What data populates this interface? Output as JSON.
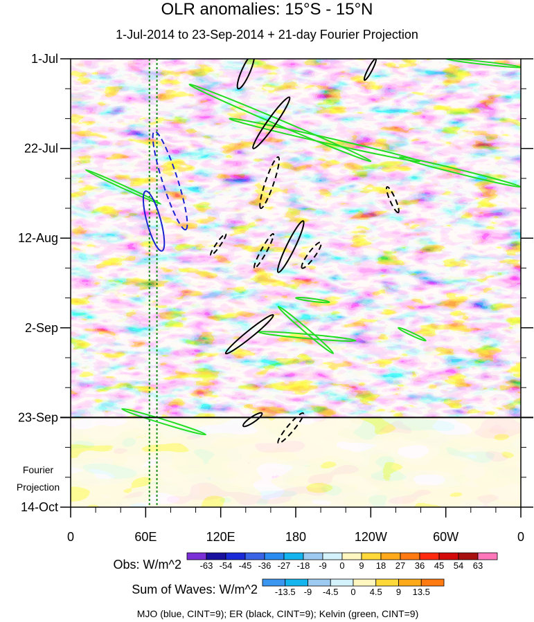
{
  "chart_data": {
    "type": "heatmap",
    "title": "OLR anomalies: 15°S - 15°N",
    "subtitle": "1-Jul-2014 to 23-Sep-2014 + 21-day Fourier Projection",
    "x_ticks": [
      {
        "label": "0",
        "lon": 0
      },
      {
        "label": "60E",
        "lon": 60
      },
      {
        "label": "120E",
        "lon": 120
      },
      {
        "label": "180",
        "lon": 180
      },
      {
        "label": "120W",
        "lon": 240
      },
      {
        "label": "60W",
        "lon": 300
      },
      {
        "label": "0",
        "lon": 360
      }
    ],
    "y_ticks": [
      {
        "label": "1-Jul",
        "day": 0
      },
      {
        "label": "22-Jul",
        "day": 21
      },
      {
        "label": "12-Aug",
        "day": 42
      },
      {
        "label": "2-Sep",
        "day": 63
      },
      {
        "label": "23-Sep",
        "day": 84
      },
      {
        "label": "14-Oct",
        "day": 105
      }
    ],
    "xlim": [
      0,
      360
    ],
    "ylim_days": [
      0,
      105
    ],
    "observation_end_day": 84,
    "projection_label": [
      "Fourier",
      "Projection"
    ],
    "reference_lons": [
      63,
      69
    ],
    "obs_legend": {
      "label": "Obs: W/m^2",
      "levels": [
        "-63",
        "-54",
        "-45",
        "-36",
        "-27",
        "-18",
        "-9",
        "0",
        "9",
        "18",
        "27",
        "36",
        "45",
        "54",
        "63"
      ],
      "colors": [
        "#7b2fd6",
        "#1a10a0",
        "#1a2ad8",
        "#3a64e6",
        "#2a8cf0",
        "#14b4ee",
        "#9ccaf0",
        "#d4f2fb",
        "#fff6c0",
        "#ffd83a",
        "#ffaa1a",
        "#ff7a10",
        "#ff2a10",
        "#d40a0a",
        "#a81010",
        "#ff77bb"
      ]
    },
    "waves_legend": {
      "label": "Sum of Waves: W/m^2",
      "levels": [
        "-13.5",
        "-9",
        "-4.5",
        "0",
        "4.5",
        "9",
        "13.5"
      ],
      "colors": [
        "#3a96f0",
        "#14b4ee",
        "#9ccaf0",
        "#d4f2fb",
        "#fff6c0",
        "#ffd83a",
        "#ffaa1a",
        "#ff7a10"
      ]
    },
    "contour_note": "MJO (blue, CINT=9); ER (black, CINT=9); Kelvin (green, CINT=9)",
    "wave_colors": {
      "mjo": "#1a22d0",
      "er": "#000000",
      "kelvin": "#22dd22"
    },
    "mjo_contours": [
      {
        "lon": 67,
        "day": 17,
        "lon2": 92,
        "day2": 40,
        "width": 11,
        "dashed": true
      },
      {
        "lon": 60,
        "day": 31,
        "lon2": 73,
        "day2": 45,
        "width": 10,
        "dashed": false
      }
    ],
    "er_contours": [
      {
        "lon": 146,
        "day": -1,
        "lon2": 134,
        "day2": 7,
        "width": 6,
        "dashed": false
      },
      {
        "lon": 146,
        "day": 21,
        "lon2": 175,
        "day2": 9,
        "width": 6,
        "dashed": false
      },
      {
        "lon": 166,
        "day": 23,
        "lon2": 152,
        "day2": 35,
        "width": 6,
        "dashed": true
      },
      {
        "lon": 186,
        "day": 38,
        "lon2": 166,
        "day2": 50,
        "width": 6,
        "dashed": false
      },
      {
        "lon": 200,
        "day": 43,
        "lon2": 185,
        "day2": 49,
        "width": 5,
        "dashed": true
      },
      {
        "lon": 162,
        "day": 41,
        "lon2": 147,
        "day2": 49,
        "width": 4,
        "dashed": true
      },
      {
        "lon": 124,
        "day": 41,
        "lon2": 112,
        "day2": 46,
        "width": 3,
        "dashed": true
      },
      {
        "lon": 235,
        "day": 5,
        "lon2": 244,
        "day2": 0,
        "width": 3,
        "dashed": false
      },
      {
        "lon": 253,
        "day": 30,
        "lon2": 262,
        "day2": 36,
        "width": 4,
        "dashed": true
      },
      {
        "lon": 162,
        "day": 60,
        "lon2": 124,
        "day2": 69,
        "width": 5,
        "dashed": false
      },
      {
        "lon": 153,
        "day": 83,
        "lon2": 138,
        "day2": 86,
        "width": 4,
        "dashed": false
      },
      {
        "lon": 186,
        "day": 83,
        "lon2": 166,
        "day2": 90,
        "width": 5,
        "dashed": true
      }
    ],
    "kelvin_contours": [
      {
        "lon": 95,
        "day": 6,
        "lon2": 240,
        "day2": 24,
        "width": 4
      },
      {
        "lon": 127,
        "day": 14,
        "lon2": 279,
        "day2": 24,
        "width": 4
      },
      {
        "lon": 263,
        "day": 23,
        "lon2": 360,
        "day2": 30,
        "width": 3
      },
      {
        "lon": 300,
        "day": 0,
        "lon2": 361,
        "day2": 2,
        "width": 2
      },
      {
        "lon": 166,
        "day": 58,
        "lon2": 210,
        "day2": 69,
        "width": 3
      },
      {
        "lon": 150,
        "day": 64,
        "lon2": 228,
        "day2": 66,
        "width": 3
      },
      {
        "lon": 41,
        "day": 82,
        "lon2": 108,
        "day2": 88,
        "width": 3
      },
      {
        "lon": 262,
        "day": 63,
        "lon2": 284,
        "day2": 66,
        "width": 2
      },
      {
        "lon": 180,
        "day": 56,
        "lon2": 207,
        "day2": 57,
        "width": 2
      },
      {
        "lon": 12,
        "day": 26,
        "lon2": 72,
        "day2": 34,
        "width": 2
      }
    ]
  }
}
